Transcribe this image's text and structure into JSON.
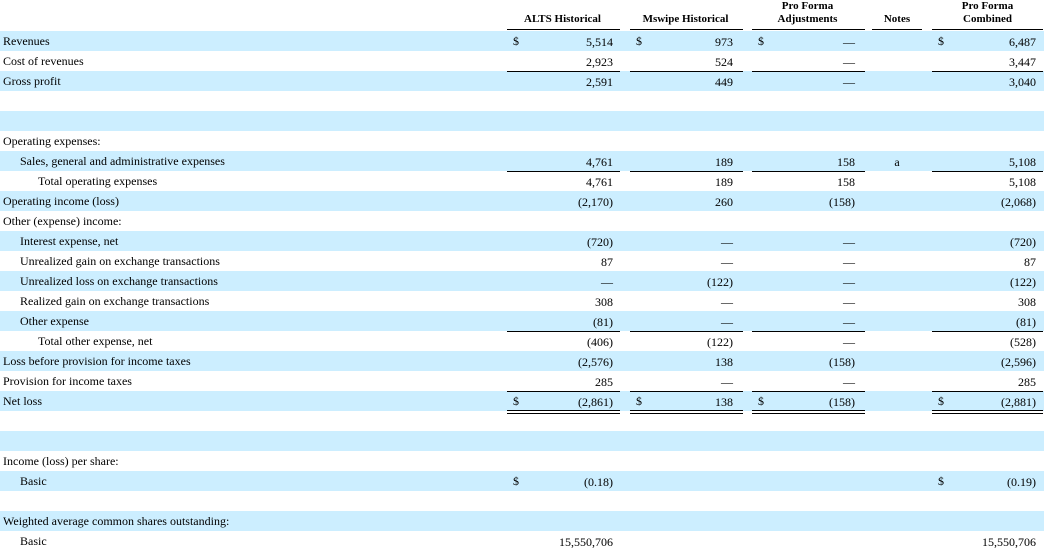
{
  "headers": {
    "alts": "ALTS Historical",
    "mswipe": "Mswipe Historical",
    "adj_line1": "Pro Forma",
    "adj_line2": "Adjustments",
    "notes": "Notes",
    "combined_line1": "Pro Forma",
    "combined_line2": "Combined"
  },
  "rows": [
    {
      "label": "Revenues",
      "indent": 0,
      "alts_cur": "$",
      "alts": "5,514",
      "msw_cur": "$",
      "msw": "973",
      "adj_cur": "$",
      "adj": "—",
      "note": "",
      "comb_cur": "$",
      "comb": "6,487",
      "shade": true
    },
    {
      "label": "Cost of revenues",
      "indent": 0,
      "alts": "2,923",
      "msw": "524",
      "adj": "—",
      "comb": "3,447",
      "shade": false
    },
    {
      "label": "Gross profit",
      "indent": 0,
      "alts": "2,591",
      "msw": "449",
      "adj": "—",
      "comb": "3,040",
      "shade": true
    },
    {
      "label": "",
      "indent": 0,
      "shade": false
    },
    {
      "label": "",
      "indent": 0,
      "shade": true
    },
    {
      "label": "Operating expenses:",
      "indent": 0,
      "shade": false
    },
    {
      "label": "Sales, general and administrative expenses",
      "indent": 1,
      "alts": "4,761",
      "msw": "189",
      "adj": "158",
      "note": "a",
      "comb": "5,108",
      "shade": true
    },
    {
      "label": "Total operating expenses",
      "indent": 2,
      "alts": "4,761",
      "msw": "189",
      "adj": "158",
      "comb": "5,108",
      "shade": false
    },
    {
      "label": "Operating income (loss)",
      "indent": 0,
      "alts": "(2,170)",
      "msw": "260",
      "adj": "(158)",
      "comb": "(2,068)",
      "shade": true
    },
    {
      "label": "Other (expense) income:",
      "indent": 0,
      "shade": false
    },
    {
      "label": "Interest expense, net",
      "indent": 1,
      "alts": "(720)",
      "msw": "—",
      "adj": "—",
      "comb": "(720)",
      "shade": true
    },
    {
      "label": "Unrealized gain on exchange transactions",
      "indent": 1,
      "alts": "87",
      "msw": "—",
      "adj": "—",
      "comb": "87",
      "shade": false
    },
    {
      "label": "Unrealized loss on exchange transactions",
      "indent": 1,
      "alts": "—",
      "msw": "(122)",
      "adj": "—",
      "comb": "(122)",
      "shade": true
    },
    {
      "label": "Realized gain on exchange transactions",
      "indent": 1,
      "alts": "308",
      "msw": "—",
      "adj": "—",
      "comb": "308",
      "shade": false
    },
    {
      "label": "Other expense",
      "indent": 1,
      "alts": "(81)",
      "msw": "—",
      "adj": "—",
      "comb": "(81)",
      "shade": true
    },
    {
      "label": "Total other expense, net",
      "indent": 2,
      "alts": "(406)",
      "msw": "(122)",
      "adj": "—",
      "comb": "(528)",
      "shade": false
    },
    {
      "label": "Loss before provision for income taxes",
      "indent": 0,
      "alts": "(2,576)",
      "msw": "138",
      "adj": "(158)",
      "comb": "(2,596)",
      "shade": true
    },
    {
      "label": "Provision for income taxes",
      "indent": 0,
      "alts": "285",
      "msw": "—",
      "adj": "—",
      "comb": "285",
      "shade": false
    },
    {
      "label": "Net loss",
      "indent": 0,
      "alts_cur": "$",
      "alts": "(2,861)",
      "msw_cur": "$",
      "msw": "138",
      "adj_cur": "$",
      "adj": "(158)",
      "comb_cur": "$",
      "comb": "(2,881)",
      "shade": true
    },
    {
      "label": "",
      "indent": 0,
      "shade": false
    },
    {
      "label": "",
      "indent": 0,
      "shade": true
    },
    {
      "label": "Income (loss) per share:",
      "indent": 0,
      "shade": false
    },
    {
      "label": "Basic",
      "indent": 1,
      "alts_cur": "$",
      "alts": "(0.18)",
      "comb_cur": "$",
      "comb": "(0.19)",
      "shade": true
    },
    {
      "label": "",
      "indent": 0,
      "shade": false
    },
    {
      "label": "Weighted average common shares outstanding:",
      "indent": 0,
      "shade": true
    },
    {
      "label": "Basic",
      "indent": 1,
      "alts": "15,550,706",
      "comb": "15,550,706",
      "shade": false
    }
  ]
}
